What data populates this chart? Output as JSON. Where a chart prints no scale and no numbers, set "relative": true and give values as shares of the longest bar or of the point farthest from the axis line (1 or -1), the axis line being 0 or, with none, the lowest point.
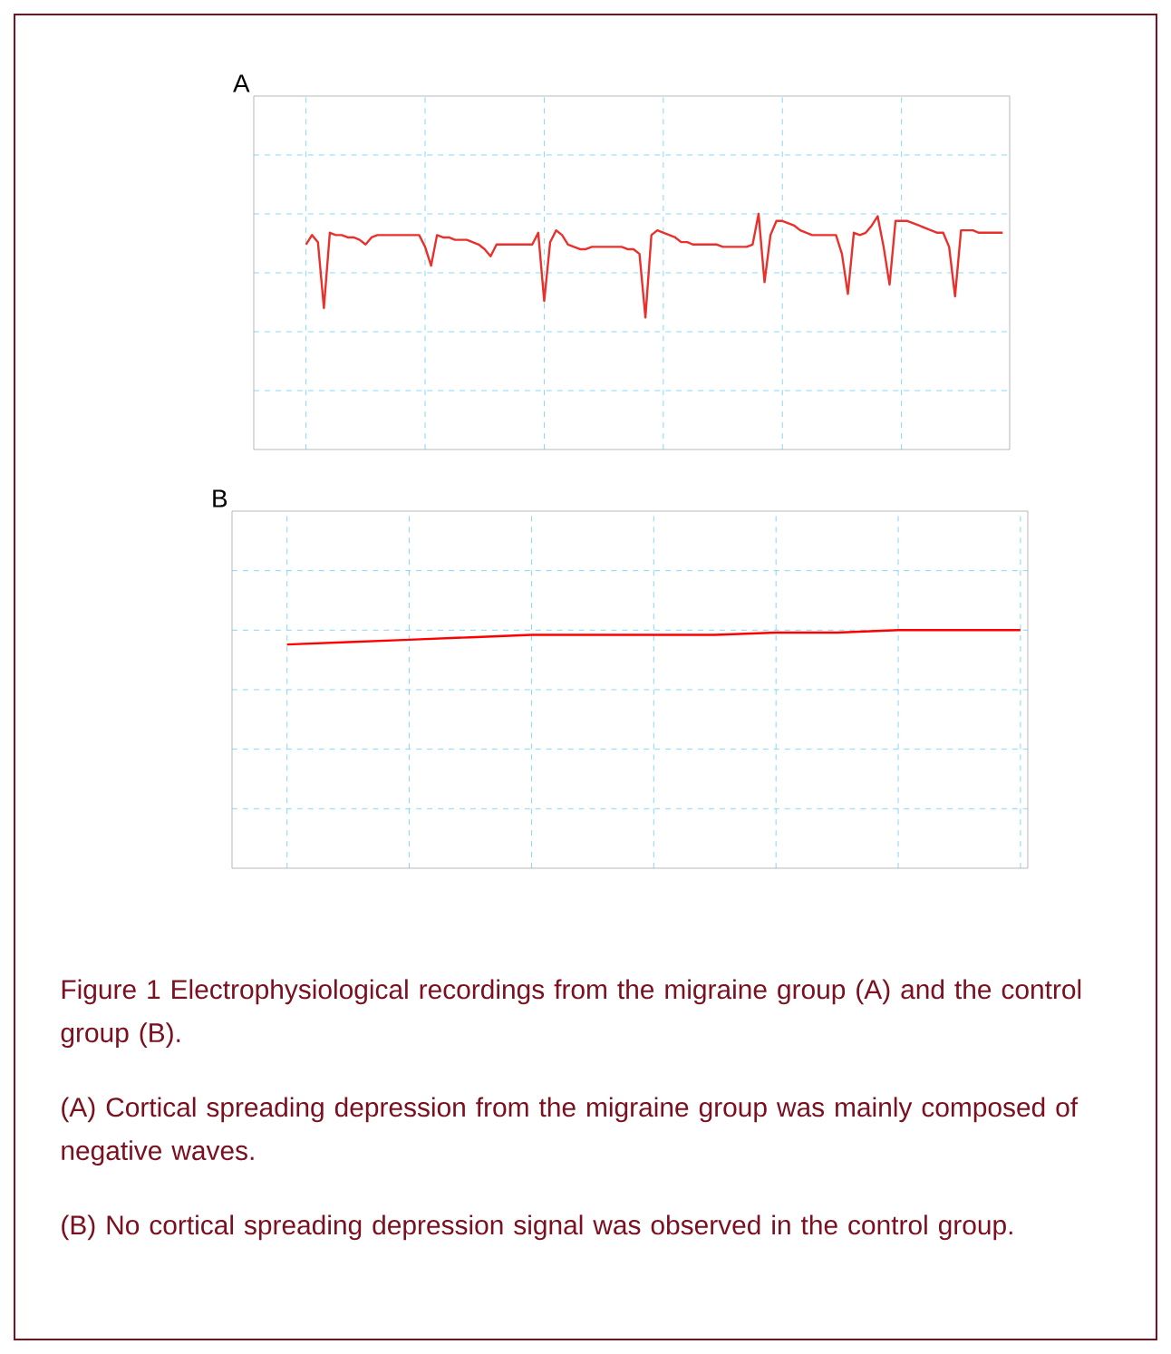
{
  "chart_data": [
    {
      "type": "line",
      "title": "A",
      "relative": true,
      "grid": true,
      "color": "#e8302c",
      "categories": [
        null,
        null,
        null,
        null,
        null,
        null,
        null,
        null,
        null,
        null,
        null,
        null,
        null,
        null,
        null,
        null,
        null,
        null,
        null,
        null,
        null,
        null,
        null,
        null,
        null,
        null,
        null,
        null,
        null,
        null,
        null,
        null,
        null,
        null,
        null,
        null,
        null,
        null,
        null,
        null,
        null,
        null,
        null,
        null,
        null,
        null,
        null,
        null,
        null,
        null,
        null,
        null,
        null,
        null,
        null,
        null,
        null,
        null,
        null,
        null,
        null,
        null,
        null,
        null,
        null,
        null,
        null,
        null,
        null,
        null,
        null,
        null,
        null,
        null,
        null,
        null,
        null,
        null,
        null,
        null,
        null,
        null,
        null,
        null,
        null,
        null,
        null,
        null,
        null,
        null,
        null,
        null,
        null,
        null,
        null,
        null,
        null,
        null,
        null,
        null,
        null,
        null,
        null,
        null,
        null,
        null,
        null,
        null,
        null,
        null,
        null,
        null,
        null,
        null,
        null,
        null,
        null,
        null
      ],
      "values": [
        0.87,
        0.91,
        0.88,
        0.6,
        0.92,
        0.91,
        0.91,
        0.9,
        0.9,
        0.89,
        0.87,
        0.9,
        0.91,
        0.91,
        0.91,
        0.91,
        0.91,
        0.91,
        0.91,
        0.91,
        0.86,
        0.78,
        0.91,
        0.9,
        0.9,
        0.89,
        0.89,
        0.89,
        0.88,
        0.87,
        0.85,
        0.82,
        0.87,
        0.87,
        0.87,
        0.87,
        0.87,
        0.87,
        0.87,
        0.92,
        0.63,
        0.88,
        0.93,
        0.91,
        0.87,
        0.86,
        0.85,
        0.85,
        0.86,
        0.86,
        0.86,
        0.86,
        0.86,
        0.86,
        0.85,
        0.85,
        0.83,
        0.56,
        0.91,
        0.93,
        0.92,
        0.91,
        0.9,
        0.88,
        0.88,
        0.87,
        0.87,
        0.87,
        0.87,
        0.87,
        0.86,
        0.86,
        0.86,
        0.86,
        0.86,
        0.87,
        1.0,
        0.71,
        0.91,
        0.97,
        0.97,
        0.96,
        0.95,
        0.93,
        0.92,
        0.91,
        0.91,
        0.91,
        0.91,
        0.91,
        0.83,
        0.66,
        0.92,
        0.91,
        0.92,
        0.95,
        0.99,
        0.86,
        0.7,
        0.97,
        0.97,
        0.97,
        0.96,
        0.95,
        0.94,
        0.93,
        0.92,
        0.92,
        0.86,
        0.65,
        0.93,
        0.93,
        0.93,
        0.92,
        0.92,
        0.92,
        0.92,
        0.92
      ]
    },
    {
      "type": "line",
      "title": "B",
      "relative": true,
      "grid": true,
      "color": "#ff0000",
      "categories": [
        null,
        null,
        null,
        null,
        null,
        null,
        null,
        null,
        null,
        null,
        null,
        null,
        null
      ],
      "values": [
        0.94,
        0.95,
        0.96,
        0.97,
        0.98,
        0.98,
        0.98,
        0.98,
        0.99,
        0.99,
        1.0,
        1.0,
        1.0
      ],
      "annotations": [
        "Figure 1 Electrophysiological recordings from the migraine group (A) and the control group (B).",
        "(A) Cortical spreading depression from the migraine group was mainly composed of negative waves.",
        "(B) No cortical spreading depression signal was observed in the control group."
      ]
    }
  ]
}
